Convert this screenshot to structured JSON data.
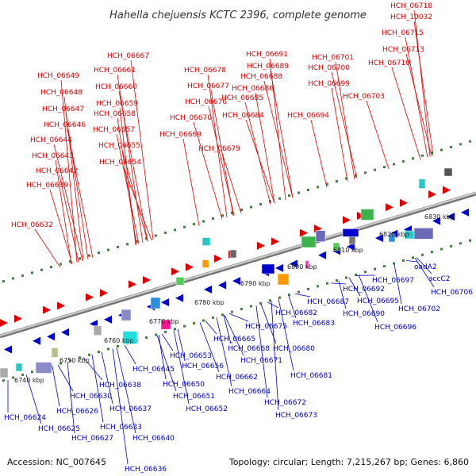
{
  "title": "Hahella chejuensis KCTC 2396, complete genome",
  "footer": {
    "accession": "Accession: NC_007645",
    "summary": "Topology: circular; Length: 7,215,267 bp; Genes: 6,860"
  },
  "colors": {
    "forward": "#e00000",
    "reverse": "#0000cc",
    "backbone": "#999999",
    "tick_dots": "#2e8b2e"
  },
  "ticks": [
    "6740 kbp",
    "6750 kbp",
    "6760 kbp",
    "6770 kbp",
    "6780 kbp",
    "6790 kbp",
    "6800 kbp",
    "6810 kbp",
    "6820 kbp",
    "6830 kbp"
  ],
  "forward_labels": [
    "HCH_06718",
    "HCH_10032",
    "HCH_06715",
    "HCH_06713",
    "HCH_06710",
    "HCH_06691",
    "HCH_06701",
    "HCH_06689",
    "HCH_06700",
    "HCH_06688",
    "HCH_06699",
    "HCH_06686",
    "HCH_06703",
    "HCH_06685",
    "HCH_06684",
    "HCH_06694",
    "HCH_06678",
    "HCH_06677",
    "HCH_06676",
    "HCH_06670",
    "HCH_06669",
    "HCH_06679",
    "HCH_06667",
    "HCH_06661",
    "HCH_06660",
    "HCH_06659",
    "HCH_06658",
    "HCH_06657",
    "HCH_06655",
    "HCH_06654",
    "HCH_06649",
    "HCH_06648",
    "HCH_06647",
    "HCH_06646",
    "HCH_06644",
    "HCH_06643",
    "HCH_06642",
    "HCH_06639",
    "HCH_06632"
  ],
  "reverse_labels": [
    "HCH_06706",
    "accC2",
    "oadA2",
    "HCH_06702",
    "HCH_06697",
    "HCH_06692",
    "HCH_06695",
    "HCH_06690",
    "HCH_06696",
    "HCH_06687",
    "HCH_06682",
    "HCH_06683",
    "HCH_06675",
    "HCH_06680",
    "HCH_06665",
    "HCH_06668",
    "HCH_06671",
    "HCH_06681",
    "HCH_06653",
    "HCH_06656",
    "HCH_06662",
    "HCH_06664",
    "HCH_06645",
    "HCH_06650",
    "HCH_06651",
    "HCH_06652",
    "HCH_06672",
    "HCH_06673",
    "HCH_06638",
    "HCH_06630",
    "HCH_06637",
    "HCH_06626",
    "HCH_06624",
    "HCH_06625",
    "HCH_06633",
    "HCH_06627",
    "HCH_06640",
    "HCH_06636"
  ]
}
